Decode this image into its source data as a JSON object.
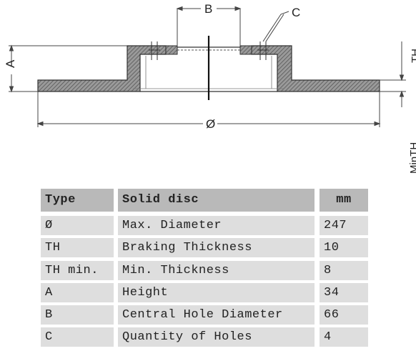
{
  "diagram": {
    "labels": {
      "b": "B",
      "c": "C",
      "a": "A",
      "th": "TH",
      "diameter": "Ø",
      "min_th": "MinTH"
    },
    "colors": {
      "hatch": "#6a6a6a",
      "outline": "#333333",
      "dim_line": "#444444"
    }
  },
  "table": {
    "header": {
      "type": "Type",
      "name": "Solid disc",
      "unit": "mm"
    },
    "rows": [
      {
        "code": "Ø",
        "label": "Max. Diameter",
        "value": "247"
      },
      {
        "code": "TH",
        "label": "Braking Thickness",
        "value": "10"
      },
      {
        "code": "TH min.",
        "label": "Min. Thickness",
        "value": "8"
      },
      {
        "code": "A",
        "label": "Height",
        "value": "34"
      },
      {
        "code": "B",
        "label": "Central Hole Diameter",
        "value": "66"
      },
      {
        "code": "C",
        "label": "Quantity of Holes",
        "value": "4"
      }
    ],
    "colors": {
      "header_bg": "#b9b9b9",
      "row_bg": "#dedede"
    }
  }
}
